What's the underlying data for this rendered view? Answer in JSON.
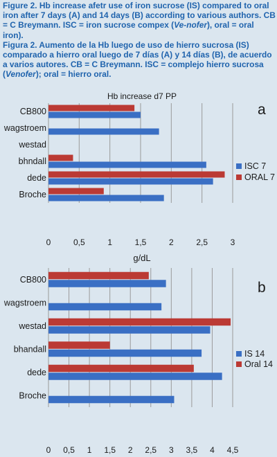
{
  "caption": {
    "en": {
      "p1": "Figure 2. Hb increase afetr use of iron sucrose (IS) compared to oral iron after 7 days (A)  and 14 days  (B) according to various authors. CB = C Breymann. ISC = iron sucrose compex (",
      "en_italic": "Ve-nofer",
      "p2": "), oral = oral iron)."
    },
    "es": {
      "p1": "Figura 2. Aumento de la Hb luego de uso de hierro sucrosa (IS) comparado a hierro oral luego de 7 días (A) y 14 días (B), de acuerdo a varios autores. CB = C Breymann. ISC = complejo hierro sucrosa (",
      "es_italic": "Venofer",
      "p2": "); oral = hierro oral."
    }
  },
  "colors": {
    "blue": "#3a6fc4",
    "red": "#bb3a34",
    "grid": "#9a9a9a",
    "text": "#1a1a1a"
  },
  "chart_data": [
    {
      "type": "bar",
      "orientation": "horizontal",
      "panel_letter": "a",
      "title": "Hb increase d7 PP",
      "xlabel": "g/dL",
      "xlim": [
        0,
        3
      ],
      "xticks": [
        "0",
        "0,5",
        "1",
        "1,5",
        "2",
        "2,5",
        "3"
      ],
      "tick_values": [
        0,
        0.5,
        1,
        1.5,
        2,
        2.5,
        3
      ],
      "grid": true,
      "legend_position": "right",
      "categories": [
        "CB800",
        "wagstroem",
        "westad",
        "bhndall",
        "dede",
        "Broche"
      ],
      "series": [
        {
          "name": "ORAL 7",
          "color": "#bb3a34",
          "values": [
            1.4,
            null,
            null,
            0.4,
            2.87,
            0.9
          ]
        },
        {
          "name": "ISC 7",
          "color": "#3a6fc4",
          "values": [
            1.5,
            1.8,
            null,
            2.57,
            2.68,
            1.88
          ]
        }
      ],
      "legend": [
        "ISC 7",
        "ORAL 7"
      ]
    },
    {
      "type": "bar",
      "orientation": "horizontal",
      "panel_letter": "b",
      "title": "",
      "xlabel": "",
      "xlim": [
        0,
        4.5
      ],
      "xticks": [
        "0",
        "0,5",
        "1",
        "1,5",
        "2",
        "2,5",
        "3",
        "3,5",
        "4",
        "4,5"
      ],
      "tick_values": [
        0,
        0.5,
        1,
        1.5,
        2,
        2.5,
        3,
        3.5,
        4,
        4.5
      ],
      "grid": true,
      "legend_position": "right",
      "categories": [
        "CB800",
        "wagstroem",
        "westad",
        "bhandall",
        "dede",
        "Broche"
      ],
      "series": [
        {
          "name": "Oral 14",
          "color": "#bb3a34",
          "values": [
            2.45,
            null,
            4.45,
            1.5,
            3.55,
            null
          ]
        },
        {
          "name": "IS 14",
          "color": "#3a6fc4",
          "values": [
            2.87,
            2.76,
            3.95,
            3.74,
            4.24,
            3.07
          ]
        }
      ],
      "legend": [
        "IS 14",
        "Oral 14"
      ]
    }
  ]
}
